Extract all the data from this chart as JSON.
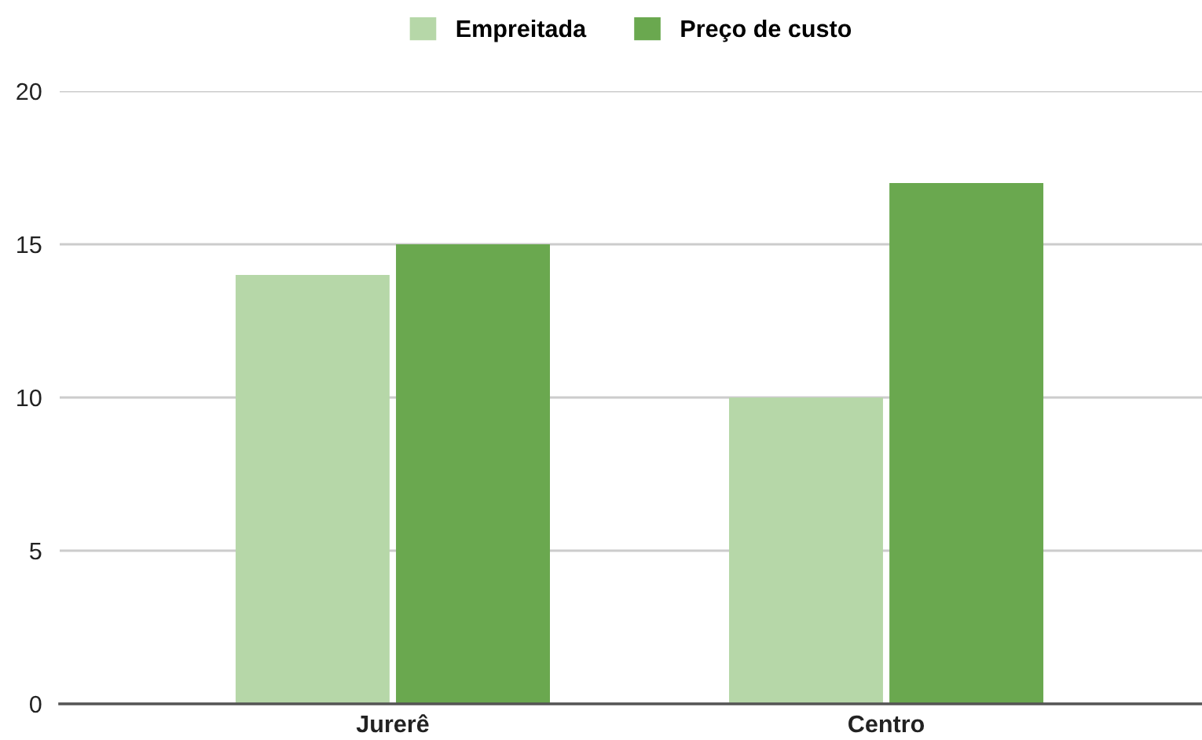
{
  "chart_data": {
    "type": "bar",
    "categories": [
      "Jurerê",
      "Centro"
    ],
    "series": [
      {
        "name": "Empreitada",
        "color": "#b6d7a8",
        "values": [
          14,
          10
        ]
      },
      {
        "name": "Preço de custo",
        "color": "#6aa84f",
        "values": [
          15,
          17
        ]
      }
    ],
    "ylim": [
      0,
      20
    ],
    "yticks": [
      0,
      5,
      10,
      15,
      20
    ],
    "grid": "y",
    "legend": "top"
  }
}
